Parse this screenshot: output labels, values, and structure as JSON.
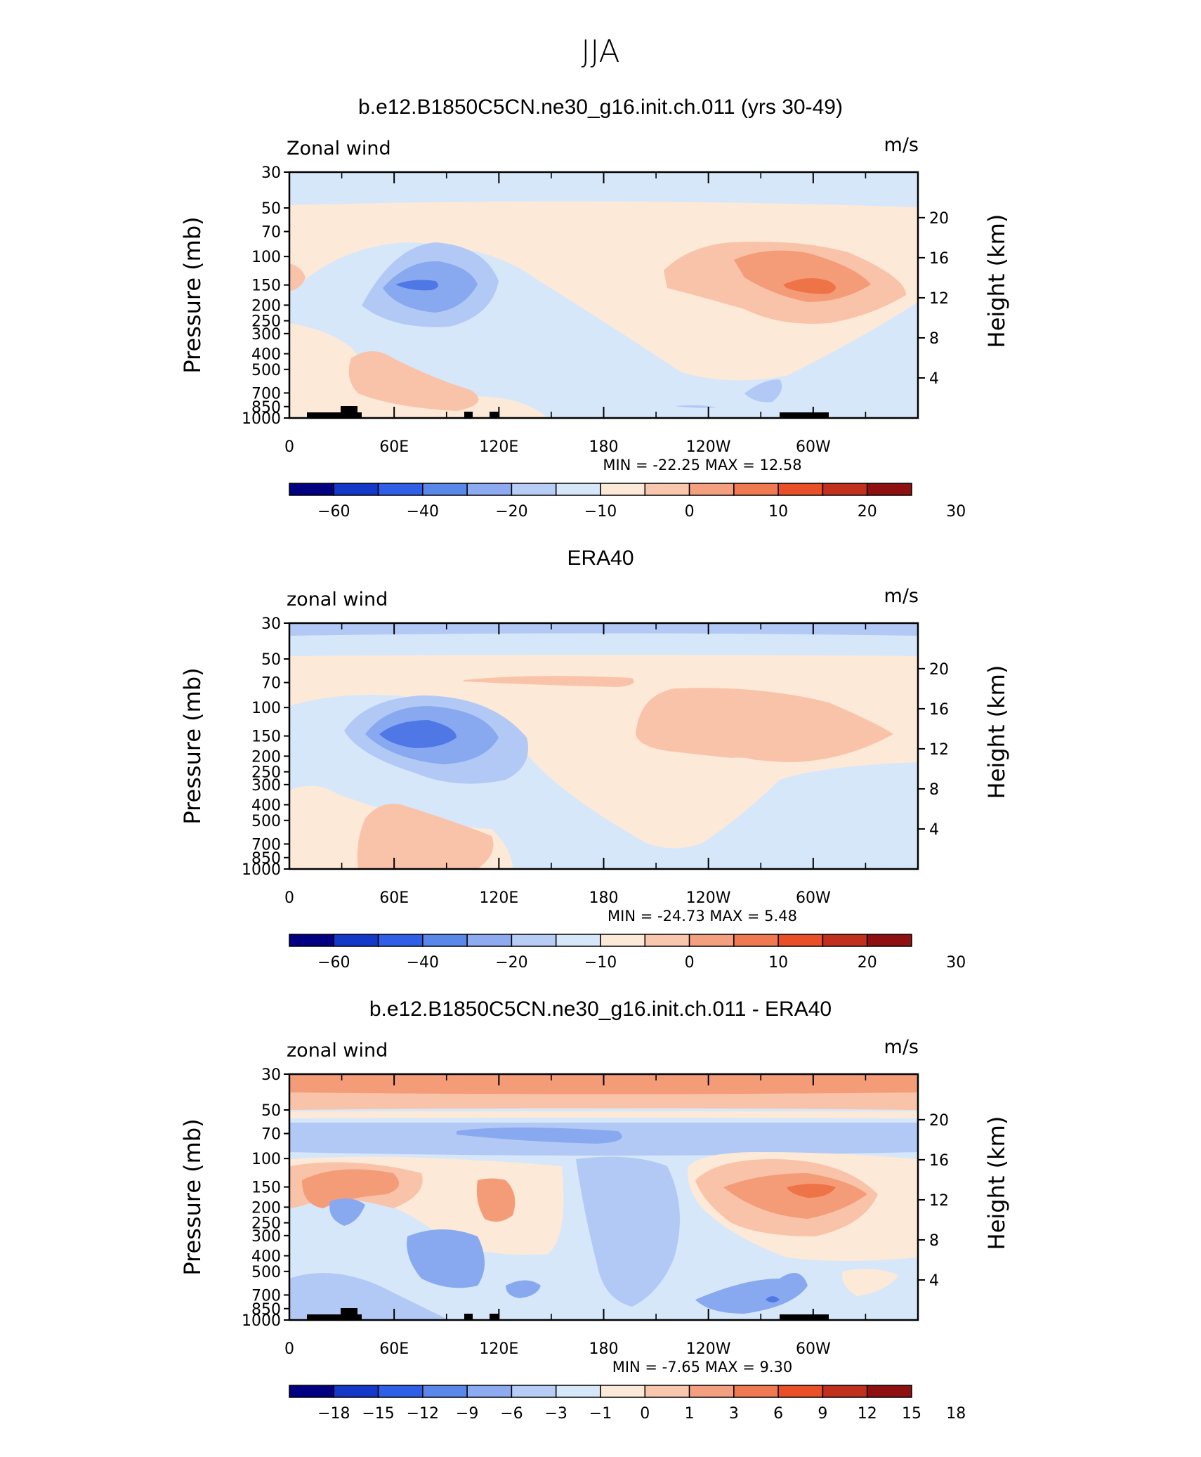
{
  "main_title": "JJA",
  "panels": [
    {
      "title": "b.e12.B1850C5CN.ne30_g16.init.ch.011 (yrs 30-49)",
      "var_label": "Zonal wind",
      "units": "m/s",
      "min_text": "MIN =  -22.25   MAX =    12.58",
      "colorbar": "abs"
    },
    {
      "title": "ERA40",
      "var_label": "zonal wind",
      "units": "m/s",
      "min_text": "MIN =  -24.73   MAX =     5.48",
      "colorbar": "abs"
    },
    {
      "title": "b.e12.B1850C5CN.ne30_g16.init.ch.011 - ERA40",
      "var_label": "zonal wind",
      "units": "m/s",
      "min_text": "MIN =   -7.65   MAX =     9.30",
      "colorbar": "diff"
    }
  ],
  "chart_data": [
    {
      "type": "heatmap",
      "title": "b.e12.B1850C5CN.ne30_g16.init.ch.011 (yrs 30-49)",
      "subtitle": "Zonal wind",
      "units": "m/s",
      "xlabel": "",
      "ylabel": "Pressure (mb)",
      "ylabel_right": "Height (km)",
      "x_ticks": [
        "0",
        "60E",
        "120E",
        "180",
        "120W",
        "60W"
      ],
      "y_ticks": [
        "30",
        "50",
        "70",
        "100",
        "150",
        "200",
        "250",
        "300",
        "400",
        "500",
        "700",
        "850",
        "1000"
      ],
      "y2_ticks": [
        "20",
        "16",
        "12",
        "8",
        "4"
      ],
      "min": -22.25,
      "max": 12.58,
      "colorbar_levels": [
        "-60",
        "-40",
        "-20",
        "-10",
        "0",
        "10",
        "20",
        "30"
      ]
    },
    {
      "type": "heatmap",
      "title": "ERA40",
      "subtitle": "zonal wind",
      "units": "m/s",
      "ylabel": "Pressure (mb)",
      "ylabel_right": "Height (km)",
      "x_ticks": [
        "0",
        "60E",
        "120E",
        "180",
        "120W",
        "60W"
      ],
      "y_ticks": [
        "30",
        "50",
        "70",
        "100",
        "150",
        "200",
        "250",
        "300",
        "400",
        "500",
        "700",
        "850",
        "1000"
      ],
      "y2_ticks": [
        "20",
        "16",
        "12",
        "8",
        "4"
      ],
      "min": -24.73,
      "max": 5.48,
      "colorbar_levels": [
        "-60",
        "-40",
        "-20",
        "-10",
        "0",
        "10",
        "20",
        "30"
      ]
    },
    {
      "type": "heatmap",
      "title": "b.e12.B1850C5CN.ne30_g16.init.ch.011 - ERA40",
      "subtitle": "zonal wind",
      "units": "m/s",
      "ylabel": "Pressure (mb)",
      "ylabel_right": "Height (km)",
      "x_ticks": [
        "0",
        "60E",
        "120E",
        "180",
        "120W",
        "60W"
      ],
      "y_ticks": [
        "30",
        "50",
        "70",
        "100",
        "150",
        "200",
        "250",
        "300",
        "400",
        "500",
        "700",
        "850",
        "1000"
      ],
      "y2_ticks": [
        "20",
        "16",
        "12",
        "8",
        "4"
      ],
      "min": -7.65,
      "max": 9.3,
      "colorbar_levels": [
        "-18",
        "-15",
        "-12",
        "-9",
        "-6",
        "-3",
        "-1",
        "0",
        "1",
        "3",
        "6",
        "9",
        "12",
        "15",
        "18"
      ]
    }
  ],
  "axis": {
    "ylabel": "Pressure (mb)",
    "y2label": "Height (km)",
    "x_ticks": [
      "0",
      "60E",
      "120E",
      "180",
      "120W",
      "60W"
    ],
    "y_ticks": [
      "30",
      "50",
      "70",
      "100",
      "150",
      "200",
      "250",
      "300",
      "400",
      "500",
      "700",
      "850",
      "1000"
    ],
    "y2_ticks": [
      "20",
      "16",
      "12",
      "8",
      "4"
    ]
  },
  "colorbars": {
    "abs_labels": [
      "-60",
      "-40",
      "-20",
      "-10",
      "0",
      "10",
      "20",
      "30"
    ],
    "diff_labels": [
      "-18",
      "-15",
      "-12",
      "-9",
      "-6",
      "-3",
      "-1",
      "0",
      "1",
      "3",
      "6",
      "9",
      "12",
      "15",
      "18"
    ],
    "colors": [
      "#000080",
      "#1438c8",
      "#2e5fe6",
      "#5a87ea",
      "#8eaaf0",
      "#b8cdf6",
      "#d6e7fa",
      "#fde9d8",
      "#f9c7ae",
      "#f4a080",
      "#ef7a52",
      "#e95028",
      "#c0301c",
      "#8e1010"
    ]
  },
  "colors": {
    "c_neg3": "#88a9ef",
    "c_neg2": "#b3c9f5",
    "c_neg1": "#d6e7fa",
    "c_pos1": "#fde9d8",
    "c_pos2": "#f9c3a9",
    "c_pos3": "#f49c78",
    "c_pos4": "#ee7447",
    "c_neg4": "#4f78e6",
    "topo": "#000000"
  }
}
